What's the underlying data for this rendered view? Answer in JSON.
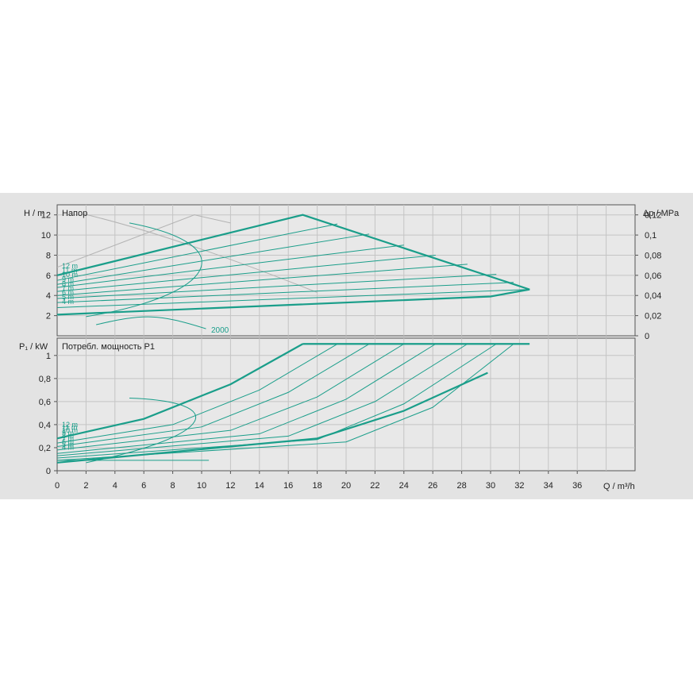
{
  "chart_data": [
    {
      "type": "line",
      "panel_title": "Напор",
      "ylabel_left": "H / m",
      "ylabel_right": "Δp / MPa",
      "xlim": [
        0,
        40
      ],
      "ylim": [
        0,
        13
      ],
      "yticks_left": [
        "2",
        "4",
        "6",
        "8",
        "10",
        "12"
      ],
      "yticks_right": [
        "0",
        "0,02",
        "0,04",
        "0,06",
        "0,08",
        "0,1",
        "0,12"
      ],
      "grid": true,
      "curve_labels": [
        "12 m",
        "11 m",
        "10 m",
        "9 m",
        "8 m",
        "7 m",
        "6 m",
        "5 m",
        "4 m"
      ],
      "annotation": "2000",
      "color": "#1a9e8a",
      "envelope": [
        [
          0,
          6
        ],
        [
          17,
          12
        ],
        [
          32.7,
          4.6
        ],
        [
          30,
          3.9
        ],
        [
          0,
          2.1
        ]
      ],
      "series": [
        {
          "name": "12 m",
          "x": [
            0,
            17
          ],
          "y": [
            6,
            12
          ]
        },
        {
          "name": "11 m",
          "x": [
            0,
            19.4
          ],
          "y": [
            5.5,
            11.1
          ]
        },
        {
          "name": "10 m",
          "x": [
            0,
            21.6
          ],
          "y": [
            5.1,
            10.1
          ]
        },
        {
          "name": "9 m",
          "x": [
            0,
            24
          ],
          "y": [
            4.8,
            9
          ]
        },
        {
          "name": "8 m",
          "x": [
            0,
            26.2
          ],
          "y": [
            4.4,
            8
          ]
        },
        {
          "name": "7 m",
          "x": [
            0,
            28.4
          ],
          "y": [
            4,
            7.1
          ]
        },
        {
          "name": "6 m",
          "x": [
            0,
            30.4
          ],
          "y": [
            3.7,
            6.1
          ]
        },
        {
          "name": "5 m",
          "x": [
            0,
            31.6
          ],
          "y": [
            3.3,
            5.3
          ]
        },
        {
          "name": "4 m",
          "x": [
            0,
            32.7
          ],
          "y": [
            2.8,
            4.6
          ]
        }
      ]
    },
    {
      "type": "line",
      "panel_title": "Потребл. мощность P1",
      "ylabel_left": "P₁ / kW",
      "xlabel": "Q / m³/h",
      "xlim": [
        0,
        40
      ],
      "ylim": [
        0,
        1.15
      ],
      "xticks": [
        "0",
        "2",
        "4",
        "6",
        "8",
        "10",
        "12",
        "14",
        "16",
        "18",
        "20",
        "22",
        "24",
        "26",
        "28",
        "30",
        "32",
        "34",
        "36"
      ],
      "yticks_left": [
        "0",
        "0,2",
        "0,4",
        "0,6",
        "0,8",
        "1"
      ],
      "grid": true,
      "curve_labels": [
        "12 m",
        "11 m",
        "10 m",
        "9 m",
        "8 m",
        "7 m",
        "6 m",
        "5 m",
        "4 m"
      ],
      "color": "#1a9e8a",
      "max_power": 1.1,
      "series": [
        {
          "name": "12 m",
          "x": [
            0,
            6,
            12,
            17
          ],
          "y": [
            0.28,
            0.45,
            0.75,
            1.1
          ]
        },
        {
          "name": "11 m",
          "x": [
            0,
            8,
            14,
            19.4
          ],
          "y": [
            0.24,
            0.4,
            0.7,
            1.1
          ]
        },
        {
          "name": "10 m",
          "x": [
            0,
            10,
            16,
            21.6
          ],
          "y": [
            0.21,
            0.38,
            0.68,
            1.1
          ]
        },
        {
          "name": "9 m",
          "x": [
            0,
            12,
            18,
            24
          ],
          "y": [
            0.18,
            0.35,
            0.64,
            1.1
          ]
        },
        {
          "name": "8 m",
          "x": [
            0,
            14,
            20,
            26.2
          ],
          "y": [
            0.15,
            0.32,
            0.62,
            1.1
          ]
        },
        {
          "name": "7 m",
          "x": [
            0,
            16,
            22,
            28.4
          ],
          "y": [
            0.13,
            0.3,
            0.6,
            1.1
          ]
        },
        {
          "name": "6 m",
          "x": [
            0,
            18,
            24,
            30.4
          ],
          "y": [
            0.11,
            0.27,
            0.58,
            1.1
          ]
        },
        {
          "name": "5 m",
          "x": [
            0,
            20,
            26,
            31.6
          ],
          "y": [
            0.09,
            0.25,
            0.55,
            1.1
          ]
        },
        {
          "name": "4 m",
          "x": [
            0,
            18,
            24,
            29.8
          ],
          "y": [
            0.07,
            0.28,
            0.52,
            0.85
          ]
        }
      ]
    }
  ]
}
